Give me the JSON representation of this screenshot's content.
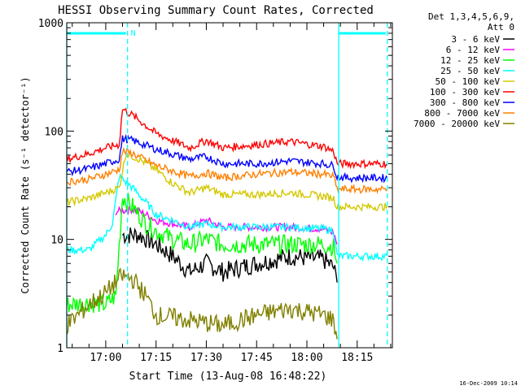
{
  "chart_data": {
    "type": "line",
    "title": "HESSI Observing Summary Count Rates, Corrected",
    "xlabel": "Start Time (13-Aug-08 16:48:22)",
    "ylabel": "Corrected Count Rate (s⁻¹ detector⁻¹)",
    "y_scale": "log",
    "ylim": [
      1,
      1000
    ],
    "xlim": [
      "16:48:22",
      "18:25:30"
    ],
    "x_ticks": [
      "17:00",
      "17:15",
      "17:30",
      "17:45",
      "18:00",
      "18:15"
    ],
    "y_ticks": [
      "1",
      "10",
      "100",
      "1000"
    ],
    "legend_header": [
      "Det 1,3,4,5,6,9,",
      "Att 0"
    ],
    "legend_position": "right",
    "footer": "16-Dec-2009 10:14",
    "annotation": "N",
    "marker_lines": {
      "solid": [
        "16:48:22",
        "18:09:30"
      ],
      "dashed": [
        "17:06:30",
        "18:24:00"
      ],
      "top_bars": [
        [
          "16:48:22",
          "17:06:30"
        ],
        [
          "18:09:30",
          "18:24:00"
        ]
      ]
    },
    "series": [
      {
        "name": "3 - 6 keV",
        "color": "#000000",
        "x": [
          "17:00",
          "17:05",
          "17:10",
          "17:15",
          "17:20",
          "17:25",
          "17:30",
          "17:35",
          "17:45",
          "17:55",
          "18:05",
          "18:08",
          "18:09"
        ],
        "values": [
          null,
          11,
          11,
          9,
          7,
          5,
          6,
          5,
          6,
          7,
          6.5,
          5.5,
          4
        ]
      },
      {
        "name": "6 - 12 keV",
        "color": "#ff00ff",
        "x": [
          "17:03",
          "17:08",
          "17:12",
          "17:15",
          "17:20",
          "17:25",
          "17:30",
          "17:35",
          "17:45",
          "17:55",
          "18:05",
          "18:08",
          "18:09"
        ],
        "values": [
          18,
          19,
          17,
          15,
          14,
          13,
          15,
          13,
          13,
          13,
          12.5,
          11.5,
          9
        ]
      },
      {
        "name": "12 - 25 keV",
        "color": "#00ff00",
        "x": [
          "16:48:22",
          "16:55",
          "17:00",
          "17:03",
          "17:05",
          "17:08",
          "17:12",
          "17:15",
          "17:20",
          "17:25",
          "17:30",
          "17:35",
          "17:45",
          "17:55",
          "18:05",
          "18:08",
          "18:09"
        ],
        "values": [
          2.5,
          2.6,
          2.5,
          3,
          25,
          20,
          14,
          12,
          10,
          9,
          10,
          9,
          9,
          9,
          9,
          8.5,
          6
        ]
      },
      {
        "name": "25 - 50 keV",
        "color": "#00ffff",
        "x": [
          "16:48:22",
          "16:55",
          "17:00",
          "17:02",
          "17:04",
          "17:08",
          "17:12",
          "17:15",
          "17:20",
          "17:25",
          "17:30",
          "17:35",
          "17:45",
          "17:55",
          "18:05",
          "18:08",
          "18:09",
          "18:12",
          "18:18",
          "18:24"
        ],
        "values": [
          8,
          8,
          11,
          14,
          38,
          30,
          22,
          17,
          15,
          13,
          14,
          13,
          13,
          13,
          12.5,
          12,
          7,
          7,
          7,
          7
        ]
      },
      {
        "name": "50 - 100 keV",
        "color": "#d4c800",
        "x": [
          "16:48:22",
          "16:55",
          "17:00",
          "17:04",
          "17:06",
          "17:10",
          "17:15",
          "17:20",
          "17:25",
          "17:30",
          "17:35",
          "17:45",
          "17:55",
          "18:05",
          "18:08",
          "18:09",
          "18:12",
          "18:18",
          "18:24"
        ],
        "values": [
          22,
          24,
          27,
          30,
          62,
          55,
          44,
          33,
          27,
          30,
          26,
          26,
          27,
          25,
          24,
          20,
          20,
          20,
          20
        ]
      },
      {
        "name": "100 - 300 keV",
        "color": "#ff0000",
        "x": [
          "16:48:22",
          "16:55",
          "17:00",
          "17:04",
          "17:05",
          "17:08",
          "17:15",
          "17:25",
          "17:30",
          "17:35",
          "17:45",
          "17:55",
          "18:05",
          "18:08",
          "18:09",
          "18:12",
          "18:18",
          "18:24"
        ],
        "values": [
          55,
          62,
          70,
          75,
          160,
          140,
          95,
          70,
          82,
          70,
          75,
          80,
          72,
          65,
          50,
          50,
          50,
          50
        ]
      },
      {
        "name": "300 - 800 keV",
        "color": "#0000ff",
        "x": [
          "16:48:22",
          "16:55",
          "17:00",
          "17:04",
          "17:05",
          "17:08",
          "17:15",
          "17:25",
          "17:30",
          "17:35",
          "17:45",
          "17:55",
          "18:05",
          "18:08",
          "18:09",
          "18:12",
          "18:18",
          "18:24"
        ],
        "values": [
          42,
          45,
          50,
          55,
          85,
          82,
          68,
          55,
          58,
          50,
          50,
          53,
          50,
          48,
          38,
          37,
          37,
          37
        ]
      },
      {
        "name": "800 - 7000 keV",
        "color": "#ff8000",
        "x": [
          "16:48:22",
          "16:55",
          "17:00",
          "17:04",
          "17:05",
          "17:08",
          "17:15",
          "17:25",
          "17:30",
          "17:35",
          "17:45",
          "17:55",
          "18:05",
          "18:08",
          "18:09",
          "18:12",
          "18:18",
          "18:24"
        ],
        "values": [
          34,
          36,
          40,
          44,
          65,
          62,
          48,
          38,
          41,
          37,
          40,
          42,
          40,
          38,
          29,
          29,
          29,
          29
        ]
      },
      {
        "name": "7000 - 20000 keV",
        "color": "#808000",
        "x": [
          "16:48:22",
          "16:55",
          "17:00",
          "17:03",
          "17:05",
          "17:08",
          "17:12",
          "17:15",
          "17:25",
          "17:35",
          "17:45",
          "17:55",
          "18:05",
          "18:08",
          "18:09"
        ],
        "values": [
          1.6,
          2.5,
          3.2,
          4,
          4.6,
          4.3,
          3,
          2,
          1.8,
          1.6,
          2,
          2.3,
          2,
          1.8,
          1.2
        ]
      }
    ]
  }
}
